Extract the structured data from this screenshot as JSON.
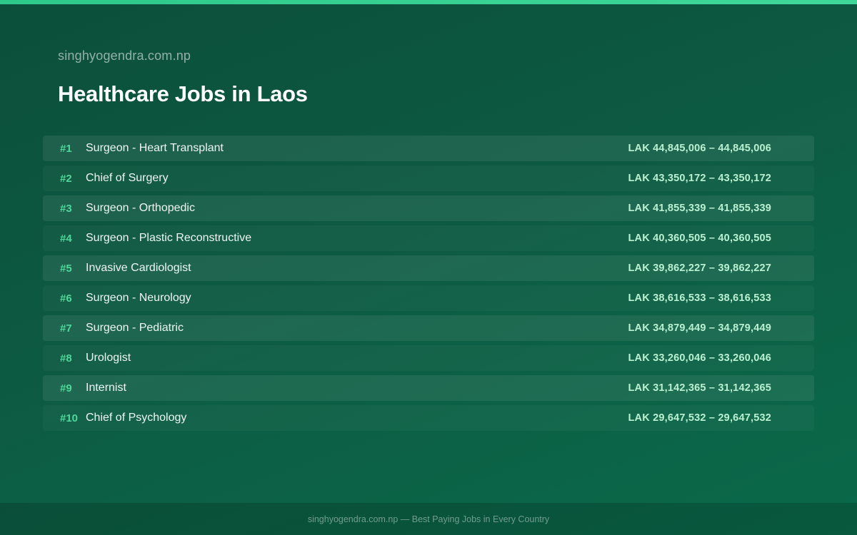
{
  "site_name": "singhyogendra.com.np",
  "title": "Healthcare Jobs in Laos",
  "jobs": [
    {
      "rank": "#1",
      "name": "Surgeon - Heart Transplant",
      "salary": "LAK 44,845,006 – 44,845,006"
    },
    {
      "rank": "#2",
      "name": "Chief of Surgery",
      "salary": "LAK 43,350,172 – 43,350,172"
    },
    {
      "rank": "#3",
      "name": "Surgeon - Orthopedic",
      "salary": "LAK 41,855,339 – 41,855,339"
    },
    {
      "rank": "#4",
      "name": "Surgeon - Plastic Reconstructive",
      "salary": "LAK 40,360,505 – 40,360,505"
    },
    {
      "rank": "#5",
      "name": "Invasive Cardiologist",
      "salary": "LAK 39,862,227 – 39,862,227"
    },
    {
      "rank": "#6",
      "name": "Surgeon - Neurology",
      "salary": "LAK 38,616,533 – 38,616,533"
    },
    {
      "rank": "#7",
      "name": "Surgeon - Pediatric",
      "salary": "LAK 34,879,449 – 34,879,449"
    },
    {
      "rank": "#8",
      "name": "Urologist",
      "salary": "LAK 33,260,046 – 33,260,046"
    },
    {
      "rank": "#9",
      "name": "Internist",
      "salary": "LAK 31,142,365 – 31,142,365"
    },
    {
      "rank": "#10",
      "name": "Chief of Psychology",
      "salary": "LAK 29,647,532 – 29,647,532"
    }
  ],
  "footer": "singhyogendra.com.np — Best Paying Jobs in Every Country"
}
